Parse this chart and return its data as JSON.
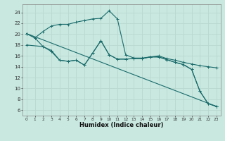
{
  "background_color": "#c8e8e0",
  "grid_color": "#b0d8d0",
  "line_color": "#1a6b6b",
  "xlabel": "Humidex (Indice chaleur)",
  "xlim": [
    -0.5,
    23.5
  ],
  "ylim": [
    5.0,
    25.5
  ],
  "yticks": [
    6,
    8,
    10,
    12,
    14,
    16,
    18,
    20,
    22,
    24
  ],
  "xticks": [
    0,
    1,
    2,
    3,
    4,
    5,
    6,
    7,
    8,
    9,
    10,
    11,
    12,
    13,
    14,
    15,
    16,
    17,
    18,
    19,
    20,
    21,
    22,
    23
  ],
  "series": [
    {
      "x": [
        0,
        1,
        2,
        3,
        4,
        5,
        6,
        7,
        8,
        9,
        10,
        11,
        12,
        13,
        14,
        15,
        16,
        17,
        18,
        19,
        20,
        21,
        22,
        23
      ],
      "y": [
        20.1,
        19.3,
        20.5,
        21.5,
        21.8,
        21.8,
        22.2,
        22.5,
        22.8,
        22.9,
        24.3,
        22.8,
        16.2,
        15.6,
        15.6,
        15.8,
        16.0,
        15.5,
        15.2,
        14.8,
        14.5,
        14.2,
        14.0,
        13.8
      ],
      "marker": "+"
    },
    {
      "x": [
        0,
        1,
        2,
        3,
        4,
        5,
        6,
        7,
        8,
        9,
        10,
        11,
        12,
        13,
        14,
        15,
        16,
        17,
        18,
        19,
        20,
        21,
        22,
        23
      ],
      "y": [
        20.1,
        19.3,
        17.7,
        16.8,
        15.2,
        15.0,
        15.2,
        14.3,
        16.5,
        18.8,
        16.2,
        15.4,
        15.4,
        15.5,
        15.5,
        15.8,
        15.8,
        15.3,
        14.8,
        14.4,
        13.5,
        9.5,
        7.2,
        6.7
      ],
      "marker": "+"
    },
    {
      "x": [
        0,
        2,
        3,
        4,
        5,
        6,
        7,
        8,
        9,
        10,
        11,
        12,
        13,
        14,
        15,
        16,
        17,
        18,
        19,
        20,
        21,
        22,
        23
      ],
      "y": [
        18.0,
        17.7,
        17.0,
        15.2,
        15.0,
        15.2,
        14.3,
        16.5,
        18.8,
        16.2,
        15.4,
        15.4,
        15.5,
        15.5,
        15.8,
        15.8,
        15.3,
        14.8,
        14.4,
        13.5,
        9.5,
        7.2,
        6.7
      ],
      "marker": "+"
    },
    {
      "x": [
        0,
        23
      ],
      "y": [
        20.1,
        6.7
      ],
      "marker": "+"
    }
  ]
}
